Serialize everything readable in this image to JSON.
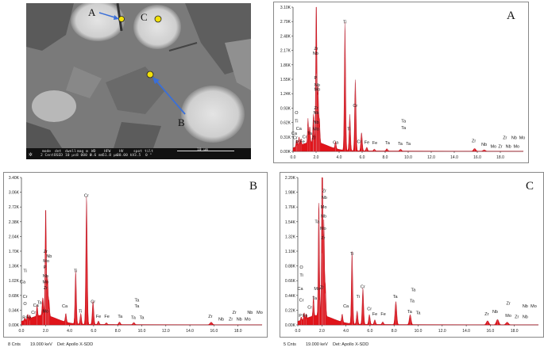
{
  "sem": {
    "markers": [
      {
        "id": "A",
        "label": "A"
      },
      {
        "id": "B",
        "label": "B"
      },
      {
        "id": "C",
        "label": "C"
      }
    ],
    "info_bar": {
      "mode": "mode",
      "mode_val": "2 Cent",
      "det": "det",
      "det_val": "BSED",
      "dwell": "dwell",
      "dwell_val": "10 µs",
      "mag": "mag ⊡",
      "mag_val": "8 000 x",
      "wd": "WD",
      "wd_val": "9.6 mm",
      "hfw": "HFW",
      "hfw_val": "51.8 µm",
      "hv": "HV",
      "hv_val": "30.00 kV",
      "spot": "spot",
      "spot_val": "3.5",
      "tilt": "tilt",
      "tilt_val": "0 °",
      "scale": "10 µm"
    }
  },
  "chart_data": [
    {
      "type": "line",
      "panel": "A",
      "xlim": [
        0,
        20
      ],
      "ylim": [
        0,
        3.1
      ],
      "yticks": [
        "0.00K",
        "0.31K",
        "0.62K",
        "0.93K",
        "1.24K",
        "1.55K",
        "1.86K",
        "2.17K",
        "2.48K",
        "2.79K",
        "3.10K"
      ],
      "xticks": [
        "0.0",
        "2.0",
        "4.0",
        "6.0",
        "8.0",
        "10.0",
        "12.0",
        "14.0",
        "16.0",
        "18.0"
      ],
      "peaks": [
        {
          "x": 0.28,
          "y": 0.1
        },
        {
          "x": 0.35,
          "y": 0.12
        },
        {
          "x": 0.52,
          "y": 0.2
        },
        {
          "x": 0.69,
          "y": 0.14
        },
        {
          "x": 1.3,
          "y": 0.52
        },
        {
          "x": 1.45,
          "y": 0.35
        },
        {
          "x": 1.74,
          "y": 0.25
        },
        {
          "x": 1.79,
          "y": 0.45
        },
        {
          "x": 2.0,
          "y": 2.05
        },
        {
          "x": 2.04,
          "y": 1.65
        },
        {
          "x": 2.17,
          "y": 1.2
        },
        {
          "x": 2.29,
          "y": 0.5
        },
        {
          "x": 3.69,
          "y": 0.15
        },
        {
          "x": 4.51,
          "y": 2.8
        },
        {
          "x": 4.93,
          "y": 0.78
        },
        {
          "x": 5.41,
          "y": 1.55
        },
        {
          "x": 5.95,
          "y": 0.4
        },
        {
          "x": 6.4,
          "y": 0.08
        },
        {
          "x": 7.06,
          "y": 0.04
        },
        {
          "x": 8.15,
          "y": 0.05
        },
        {
          "x": 9.34,
          "y": 0.04
        },
        {
          "x": 15.77,
          "y": 0.06
        },
        {
          "x": 16.6,
          "y": 0.03
        }
      ],
      "labels": [
        {
          "x": 0.35,
          "y": 0.17,
          "t": "P"
        },
        {
          "x": 0.8,
          "y": 0.18,
          "t": "Fe"
        },
        {
          "x": 0.2,
          "y": 0.26,
          "t": "Cr"
        },
        {
          "x": 0.1,
          "y": 0.36,
          "t": "Ca"
        },
        {
          "x": 0.3,
          "y": 0.62,
          "t": "Ti"
        },
        {
          "x": 0.3,
          "y": 0.8,
          "t": "O"
        },
        {
          "x": 0.5,
          "y": 0.46,
          "t": "Ca"
        },
        {
          "x": 1.0,
          "y": 0.28,
          "t": "Cr"
        },
        {
          "x": 1.45,
          "y": 0.36,
          "t": "Ta"
        },
        {
          "x": 1.8,
          "y": 0.26,
          "t": "Zr"
        },
        {
          "x": 2.0,
          "y": 0.45,
          "t": "Mo"
        },
        {
          "x": 2.0,
          "y": 0.6,
          "t": "Nb"
        },
        {
          "x": 2.0,
          "y": 0.8,
          "t": "Nb"
        },
        {
          "x": 2.0,
          "y": 0.9,
          "t": "Zr"
        },
        {
          "x": 2.1,
          "y": 1.3,
          "t": "Mo"
        },
        {
          "x": 2.1,
          "y": 1.4,
          "t": "Nb"
        },
        {
          "x": 1.95,
          "y": 1.55,
          "t": "P"
        },
        {
          "x": 1.95,
          "y": 2.08,
          "t": "Nb"
        },
        {
          "x": 2.0,
          "y": 2.18,
          "t": "Zr"
        },
        {
          "x": 4.5,
          "y": 2.75,
          "t": "Ti"
        },
        {
          "x": 5.4,
          "y": 0.95,
          "t": "Cr"
        },
        {
          "x": 4.85,
          "y": 0.45,
          "t": "Ti"
        },
        {
          "x": 5.75,
          "y": 0.18,
          "t": "Cr"
        },
        {
          "x": 6.4,
          "y": 0.16,
          "t": "Fe"
        },
        {
          "x": 7.1,
          "y": 0.15,
          "t": "Fe"
        },
        {
          "x": 3.7,
          "y": 0.16,
          "t": "Ca"
        },
        {
          "x": 8.2,
          "y": 0.15,
          "t": "Ta"
        },
        {
          "x": 9.3,
          "y": 0.14,
          "t": "Ta"
        },
        {
          "x": 10.0,
          "y": 0.14,
          "t": "Ta"
        },
        {
          "x": 9.6,
          "y": 0.48,
          "t": "Ta"
        },
        {
          "x": 9.6,
          "y": 0.62,
          "t": "Ta"
        },
        {
          "x": 15.7,
          "y": 0.2,
          "t": "Zr"
        },
        {
          "x": 16.6,
          "y": 0.12,
          "t": "Nb"
        },
        {
          "x": 17.4,
          "y": 0.08,
          "t": "Mo"
        },
        {
          "x": 18.0,
          "y": 0.08,
          "t": "Zr"
        },
        {
          "x": 18.7,
          "y": 0.08,
          "t": "Nb"
        },
        {
          "x": 19.4,
          "y": 0.08,
          "t": "Mo"
        },
        {
          "x": 18.4,
          "y": 0.26,
          "t": "Zr"
        },
        {
          "x": 19.2,
          "y": 0.26,
          "t": "Nb"
        },
        {
          "x": 19.9,
          "y": 0.26,
          "t": "Mo"
        }
      ]
    },
    {
      "type": "line",
      "panel": "B",
      "xlim": [
        0,
        20
      ],
      "ylim": [
        0,
        3.4
      ],
      "yticks": [
        "0.00K",
        "0.34K",
        "0.68K",
        "1.02K",
        "1.36K",
        "1.70K",
        "2.04K",
        "2.38K",
        "2.72K",
        "3.06K",
        "3.40K"
      ],
      "xticks": [
        "0.0",
        "2.0",
        "4.0",
        "6.0",
        "8.0",
        "10.0",
        "12.0",
        "14.0",
        "16.0",
        "18.0"
      ],
      "caption_left": "8 Cnts",
      "caption_mid": "19.000 keV",
      "caption_right": "Det: Apollo X-SDD",
      "peaks": [
        {
          "x": 0.28,
          "y": 0.06
        },
        {
          "x": 0.52,
          "y": 0.12
        },
        {
          "x": 0.69,
          "y": 0.08
        },
        {
          "x": 1.3,
          "y": 0.25
        },
        {
          "x": 1.74,
          "y": 0.22
        },
        {
          "x": 1.8,
          "y": 0.3
        },
        {
          "x": 2.0,
          "y": 1.6
        },
        {
          "x": 2.04,
          "y": 1.25
        },
        {
          "x": 2.17,
          "y": 0.9
        },
        {
          "x": 2.29,
          "y": 0.35
        },
        {
          "x": 3.69,
          "y": 0.2
        },
        {
          "x": 4.51,
          "y": 1.25
        },
        {
          "x": 4.93,
          "y": 0.25
        },
        {
          "x": 5.41,
          "y": 3.0
        },
        {
          "x": 5.95,
          "y": 0.55
        },
        {
          "x": 6.4,
          "y": 0.08
        },
        {
          "x": 7.06,
          "y": 0.04
        },
        {
          "x": 8.15,
          "y": 0.06
        },
        {
          "x": 9.34,
          "y": 0.05
        },
        {
          "x": 15.77,
          "y": 0.06
        }
      ],
      "labels": [
        {
          "x": 0.2,
          "y": 0.14,
          "t": "P"
        },
        {
          "x": 0.6,
          "y": 0.14,
          "t": "Fe"
        },
        {
          "x": 0.3,
          "y": 0.46,
          "t": "O"
        },
        {
          "x": 0.3,
          "y": 0.62,
          "t": "Cr"
        },
        {
          "x": 0.1,
          "y": 0.96,
          "t": "Ca"
        },
        {
          "x": 0.3,
          "y": 1.22,
          "t": "Ti"
        },
        {
          "x": 1.2,
          "y": 0.42,
          "t": "Ca"
        },
        {
          "x": 1.0,
          "y": 0.26,
          "t": "Cr"
        },
        {
          "x": 1.5,
          "y": 0.48,
          "t": "Ta"
        },
        {
          "x": 2.0,
          "y": 0.28,
          "t": "Mo"
        },
        {
          "x": 2.0,
          "y": 0.82,
          "t": "Zr"
        },
        {
          "x": 2.0,
          "y": 0.96,
          "t": "Mo"
        },
        {
          "x": 2.0,
          "y": 1.1,
          "t": "Nb"
        },
        {
          "x": 1.95,
          "y": 1.3,
          "t": "P"
        },
        {
          "x": 2.05,
          "y": 1.44,
          "t": "Mo"
        },
        {
          "x": 2.3,
          "y": 1.55,
          "t": "Nb"
        },
        {
          "x": 2.0,
          "y": 1.66,
          "t": "Zr"
        },
        {
          "x": 5.4,
          "y": 2.95,
          "t": "Cr"
        },
        {
          "x": 4.5,
          "y": 1.22,
          "t": "Ti"
        },
        {
          "x": 5.95,
          "y": 0.5,
          "t": "Cr"
        },
        {
          "x": 4.9,
          "y": 0.28,
          "t": "Ti"
        },
        {
          "x": 3.6,
          "y": 0.4,
          "t": "Ca"
        },
        {
          "x": 6.4,
          "y": 0.16,
          "t": "Fe"
        },
        {
          "x": 7.1,
          "y": 0.16,
          "t": "Fe"
        },
        {
          "x": 8.2,
          "y": 0.16,
          "t": "Ta"
        },
        {
          "x": 9.3,
          "y": 0.14,
          "t": "Ta"
        },
        {
          "x": 10.0,
          "y": 0.14,
          "t": "Ta"
        },
        {
          "x": 9.6,
          "y": 0.4,
          "t": "Ta"
        },
        {
          "x": 9.6,
          "y": 0.54,
          "t": "Ta"
        },
        {
          "x": 15.7,
          "y": 0.16,
          "t": "Zr"
        },
        {
          "x": 16.6,
          "y": 0.1,
          "t": "Nb"
        },
        {
          "x": 17.4,
          "y": 0.1,
          "t": "Zr"
        },
        {
          "x": 18.1,
          "y": 0.1,
          "t": "Nb"
        },
        {
          "x": 18.8,
          "y": 0.1,
          "t": "Mo"
        },
        {
          "x": 17.7,
          "y": 0.26,
          "t": "Zr"
        },
        {
          "x": 19.0,
          "y": 0.26,
          "t": "Nb"
        },
        {
          "x": 19.8,
          "y": 0.26,
          "t": "Mo"
        }
      ]
    },
    {
      "type": "line",
      "panel": "C",
      "xlim": [
        0,
        20
      ],
      "ylim": [
        0,
        2.2
      ],
      "yticks": [
        "0.00K",
        "0.22K",
        "0.44K",
        "0.66K",
        "0.88K",
        "1.10K",
        "1.32K",
        "1.54K",
        "1.76K",
        "1.98K",
        "2.20K"
      ],
      "xticks": [
        "0.0",
        "2.0",
        "4.0",
        "6.0",
        "8.0",
        "10.0",
        "12.0",
        "14.0",
        "16.0",
        "18.0"
      ],
      "caption_left": "5 Cnts",
      "caption_mid": "19.000 keV",
      "caption_right": "Det: Apollo X-SDD",
      "peaks": [
        {
          "x": 0.28,
          "y": 0.05
        },
        {
          "x": 0.52,
          "y": 0.1
        },
        {
          "x": 0.69,
          "y": 0.07
        },
        {
          "x": 1.3,
          "y": 0.3
        },
        {
          "x": 1.74,
          "y": 1.55
        },
        {
          "x": 1.79,
          "y": 0.35
        },
        {
          "x": 2.0,
          "y": 1.05
        },
        {
          "x": 2.04,
          "y": 2.0
        },
        {
          "x": 2.17,
          "y": 1.4
        },
        {
          "x": 2.29,
          "y": 0.45
        },
        {
          "x": 3.69,
          "y": 0.12
        },
        {
          "x": 4.51,
          "y": 1.1
        },
        {
          "x": 4.93,
          "y": 0.2
        },
        {
          "x": 5.41,
          "y": 0.55
        },
        {
          "x": 5.95,
          "y": 0.15
        },
        {
          "x": 6.4,
          "y": 0.07
        },
        {
          "x": 7.06,
          "y": 0.04
        },
        {
          "x": 8.15,
          "y": 0.35
        },
        {
          "x": 9.34,
          "y": 0.15
        },
        {
          "x": 15.77,
          "y": 0.06
        },
        {
          "x": 16.6,
          "y": 0.08
        },
        {
          "x": 17.4,
          "y": 0.04
        }
      ],
      "labels": [
        {
          "x": 0.2,
          "y": 0.12,
          "t": "P"
        },
        {
          "x": 0.6,
          "y": 0.12,
          "t": "Fe"
        },
        {
          "x": 0.3,
          "y": 0.35,
          "t": "Cr"
        },
        {
          "x": 0.2,
          "y": 0.52,
          "t": "Ca"
        },
        {
          "x": 0.3,
          "y": 0.72,
          "t": "Ti"
        },
        {
          "x": 0.3,
          "y": 0.84,
          "t": "O"
        },
        {
          "x": 1.0,
          "y": 0.24,
          "t": "Cr"
        },
        {
          "x": 1.4,
          "y": 0.38,
          "t": "Ta"
        },
        {
          "x": 1.6,
          "y": 0.52,
          "t": "Mo"
        },
        {
          "x": 2.0,
          "y": 0.54,
          "t": "Zr"
        },
        {
          "x": 1.6,
          "y": 1.52,
          "t": "Ta"
        },
        {
          "x": 2.1,
          "y": 1.28,
          "t": "Zr"
        },
        {
          "x": 2.1,
          "y": 1.42,
          "t": "Mo"
        },
        {
          "x": 2.15,
          "y": 1.6,
          "t": "Nb"
        },
        {
          "x": 2.15,
          "y": 1.74,
          "t": "Mo"
        },
        {
          "x": 2.2,
          "y": 1.88,
          "t": "Nb"
        },
        {
          "x": 2.2,
          "y": 1.98,
          "t": "Zr"
        },
        {
          "x": 4.5,
          "y": 1.04,
          "t": "Ti"
        },
        {
          "x": 5.4,
          "y": 0.55,
          "t": "Cr"
        },
        {
          "x": 5.0,
          "y": 0.4,
          "t": "Ti"
        },
        {
          "x": 4.0,
          "y": 0.26,
          "t": "Ca"
        },
        {
          "x": 5.95,
          "y": 0.22,
          "t": "Cr"
        },
        {
          "x": 6.4,
          "y": 0.14,
          "t": "Fe"
        },
        {
          "x": 7.1,
          "y": 0.14,
          "t": "Fe"
        },
        {
          "x": 8.1,
          "y": 0.4,
          "t": "Ta"
        },
        {
          "x": 9.3,
          "y": 0.18,
          "t": "Ta"
        },
        {
          "x": 10.0,
          "y": 0.16,
          "t": "Ta"
        },
        {
          "x": 9.5,
          "y": 0.34,
          "t": "Ta"
        },
        {
          "x": 9.6,
          "y": 0.5,
          "t": "Ta"
        },
        {
          "x": 15.7,
          "y": 0.14,
          "t": "Zr"
        },
        {
          "x": 16.4,
          "y": 0.18,
          "t": "Nb"
        },
        {
          "x": 17.5,
          "y": 0.12,
          "t": "Mo"
        },
        {
          "x": 18.2,
          "y": 0.1,
          "t": "Zr"
        },
        {
          "x": 18.9,
          "y": 0.1,
          "t": "Nb"
        },
        {
          "x": 17.5,
          "y": 0.3,
          "t": "Zr"
        },
        {
          "x": 18.9,
          "y": 0.26,
          "t": "Nb"
        },
        {
          "x": 19.6,
          "y": 0.26,
          "t": "Mo"
        }
      ]
    }
  ]
}
